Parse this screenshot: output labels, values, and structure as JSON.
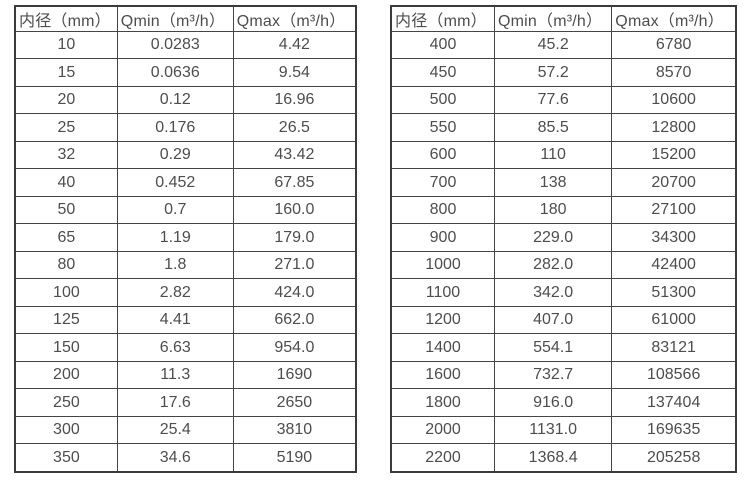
{
  "colors": {
    "background": "#ffffff",
    "table_border": "#3b3b3b",
    "cell_border": "#454545",
    "text": "#4d4d4d"
  },
  "chart_data": [
    {
      "type": "table",
      "title": "",
      "columns": [
        "内径（mm）",
        "Qmin（m³/h）",
        "Qmax（m³/h）"
      ],
      "rows": [
        [
          "10",
          "0.0283",
          "4.42"
        ],
        [
          "15",
          "0.0636",
          "9.54"
        ],
        [
          "20",
          "0.12",
          "16.96"
        ],
        [
          "25",
          "0.176",
          "26.5"
        ],
        [
          "32",
          "0.29",
          "43.42"
        ],
        [
          "40",
          "0.452",
          "67.85"
        ],
        [
          "50",
          "0.7",
          "160.0"
        ],
        [
          "65",
          "1.19",
          "179.0"
        ],
        [
          "80",
          "1.8",
          "271.0"
        ],
        [
          "100",
          "2.82",
          "424.0"
        ],
        [
          "125",
          "4.41",
          "662.0"
        ],
        [
          "150",
          "6.63",
          "954.0"
        ],
        [
          "200",
          "11.3",
          "1690"
        ],
        [
          "250",
          "17.6",
          "2650"
        ],
        [
          "300",
          "25.4",
          "3810"
        ],
        [
          "350",
          "34.6",
          "5190"
        ]
      ]
    },
    {
      "type": "table",
      "title": "",
      "columns": [
        "内径（mm）",
        "Qmin（m³/h）",
        "Qmax（m³/h）"
      ],
      "rows": [
        [
          "400",
          "45.2",
          "6780"
        ],
        [
          "450",
          "57.2",
          "8570"
        ],
        [
          "500",
          "77.6",
          "10600"
        ],
        [
          "550",
          "85.5",
          "12800"
        ],
        [
          "600",
          "110",
          "15200"
        ],
        [
          "700",
          "138",
          "20700"
        ],
        [
          "800",
          "180",
          "27100"
        ],
        [
          "900",
          "229.0",
          "34300"
        ],
        [
          "1000",
          "282.0",
          "42400"
        ],
        [
          "1100",
          "342.0",
          "51300"
        ],
        [
          "1200",
          "407.0",
          "61000"
        ],
        [
          "1400",
          "554.1",
          "83121"
        ],
        [
          "1600",
          "732.7",
          "108566"
        ],
        [
          "1800",
          "916.0",
          "137404"
        ],
        [
          "2000",
          "1131.0",
          "169635"
        ],
        [
          "2200",
          "1368.4",
          "205258"
        ]
      ]
    }
  ]
}
